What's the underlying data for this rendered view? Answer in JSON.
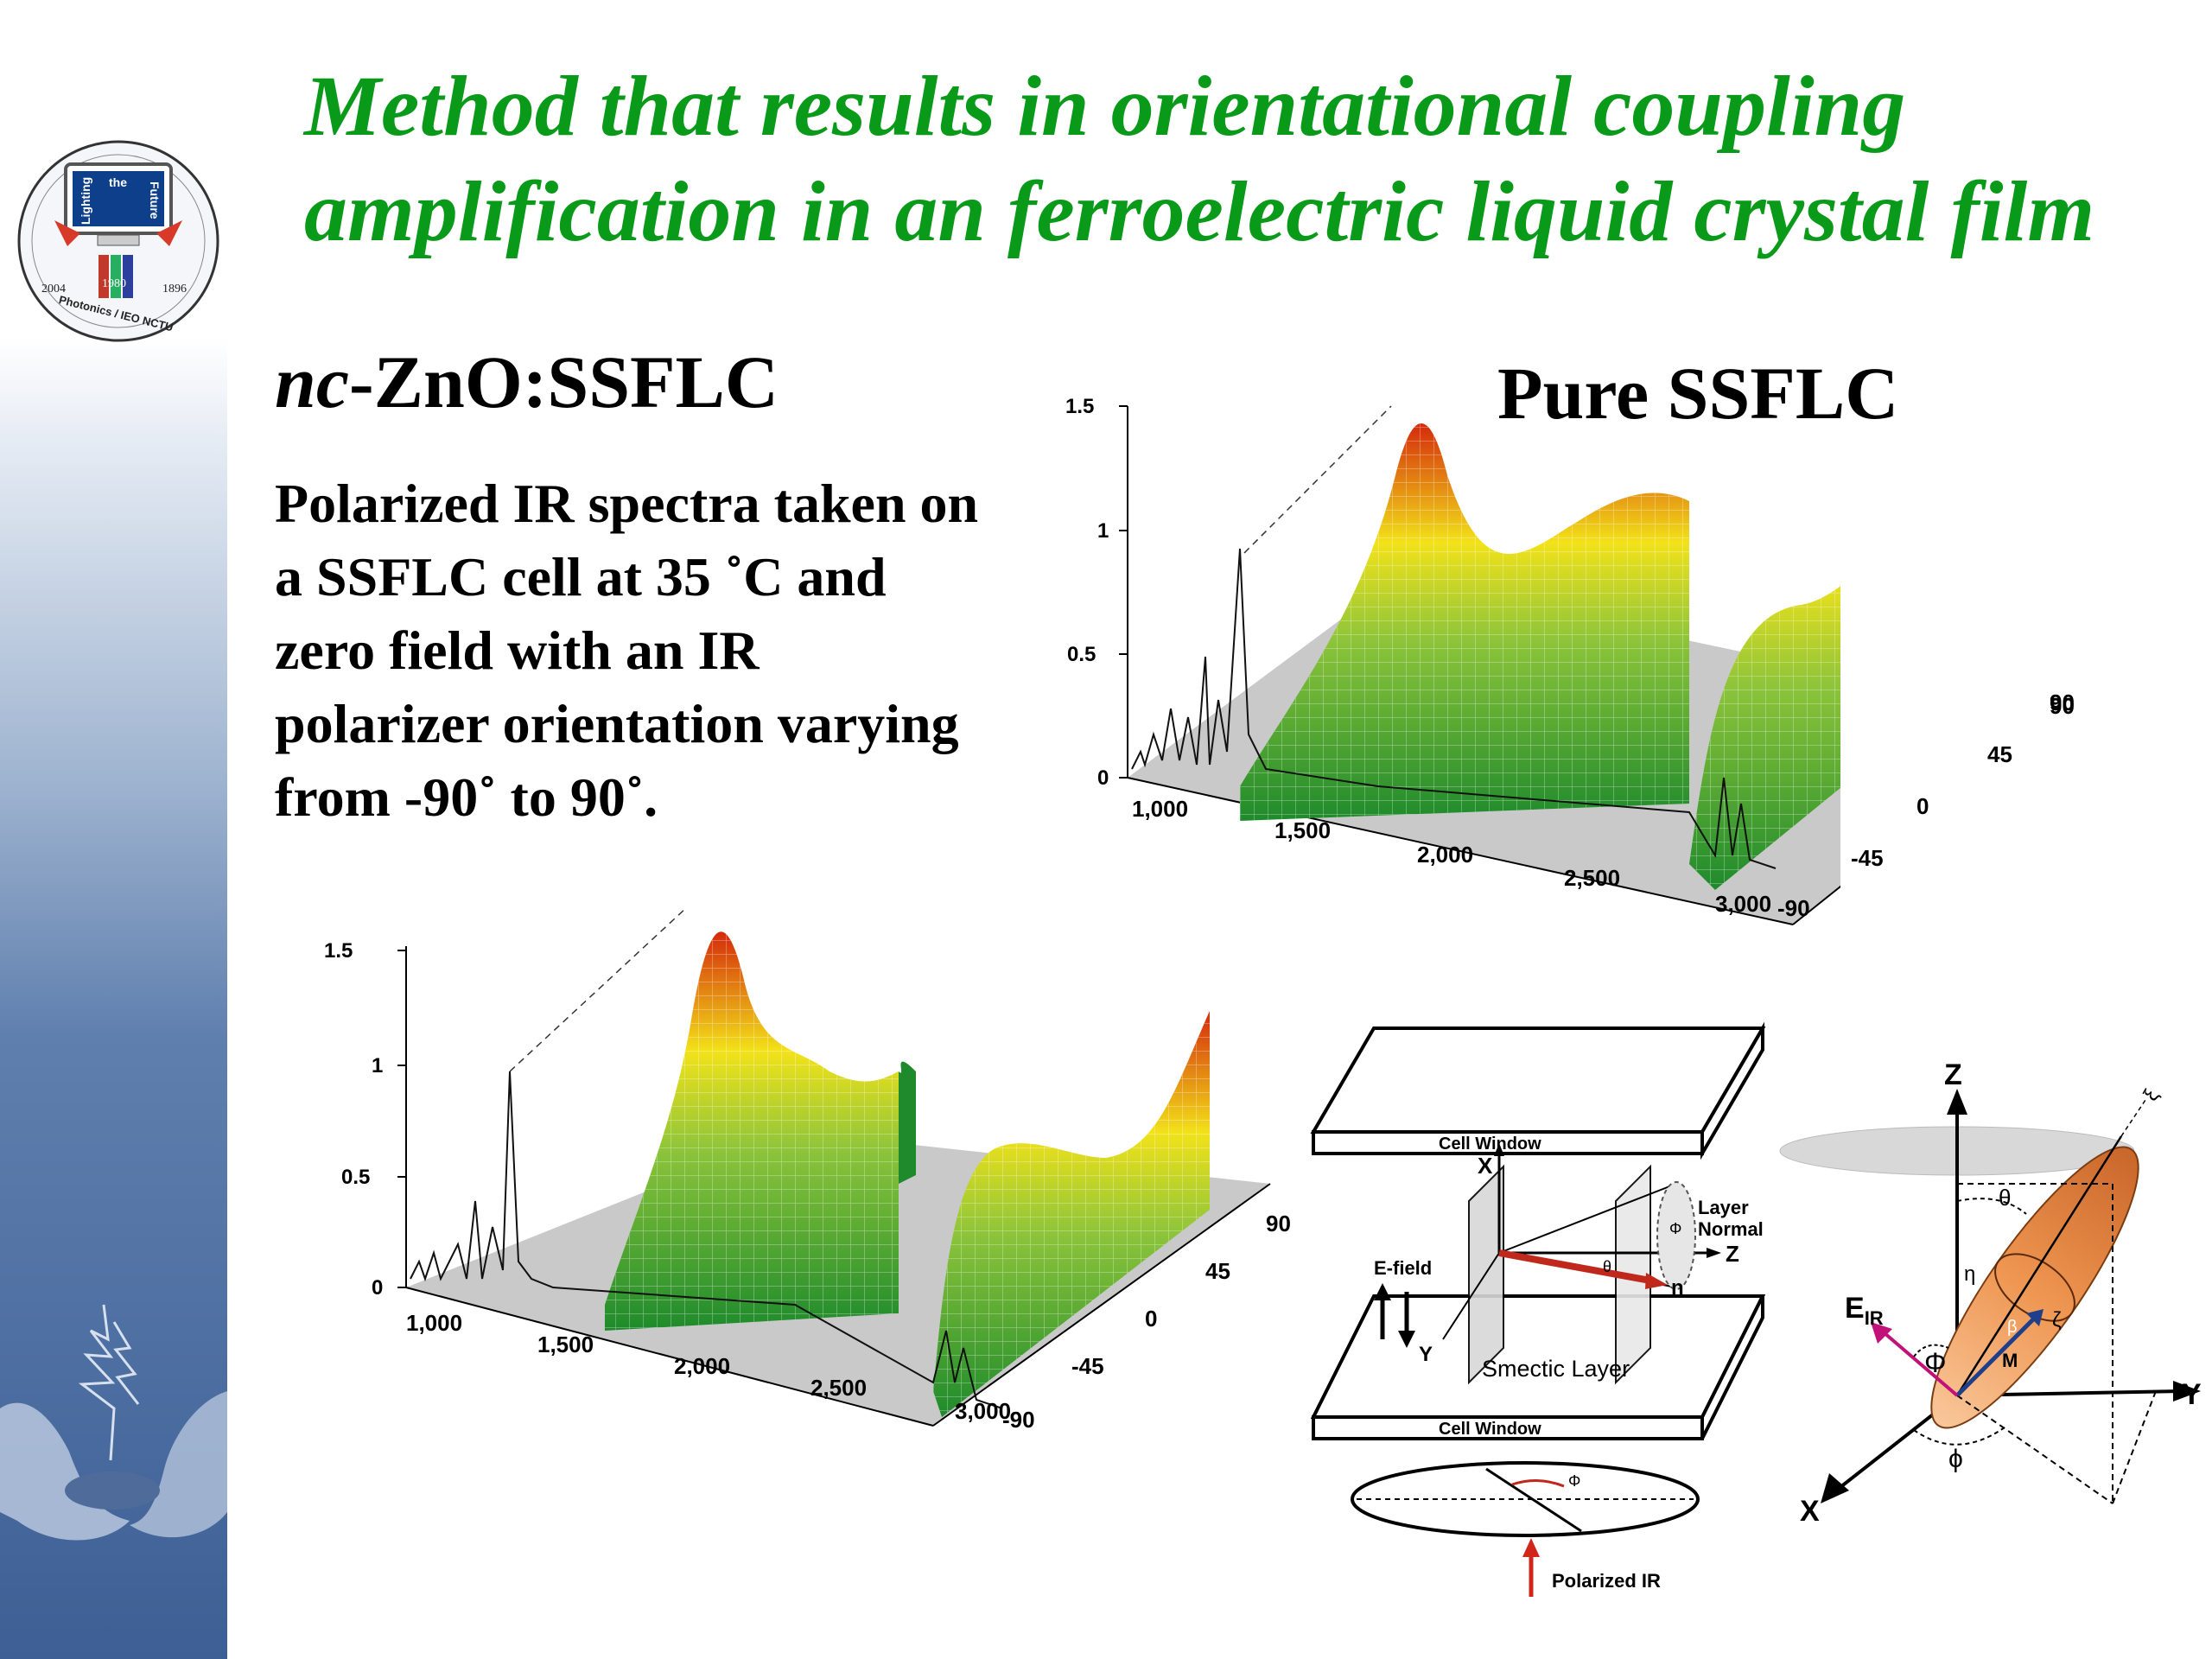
{
  "slide": {
    "title_line1": "Method that results in orientational coupling",
    "title_line2": "amplification in an ferroelectric liquid crystal film",
    "subtitle_left_prefix": "nc",
    "subtitle_left_rest": "-ZnO:SSFLC",
    "subtitle_right": "Pure SSFLC",
    "description": "Polarized IR spectra taken on a SSFLC cell at 35 ˚C and zero field with an IR polarizer orientation varying from -90˚ to 90˚."
  },
  "logo": {
    "text_lighting": "Lighting",
    "text_the": "the",
    "text_future": "Future",
    "year_left": "2004",
    "year_mid": "1980",
    "year_right": "1896",
    "org": "Photonics / IEO NCTU"
  },
  "plots": [
    {
      "name": "plot-pure-ssflc",
      "z_ticks": [
        "0",
        "0.5",
        "1",
        "1.5"
      ],
      "x_ticks": [
        "1,000",
        "1,500",
        "2,000",
        "2,500",
        "3,000"
      ],
      "y_ticks": [
        "-90",
        "-45",
        "0",
        "45",
        "90"
      ]
    },
    {
      "name": "plot-nc-zno-ssflc",
      "z_ticks": [
        "0",
        "0.5",
        "1",
        "1.5"
      ],
      "x_ticks": [
        "1,000",
        "1,500",
        "2,000",
        "2,500",
        "3,000"
      ],
      "y_ticks": [
        "-90",
        "-45",
        "0",
        "45",
        "90"
      ]
    }
  ],
  "cell_diagram": {
    "cell_window_top": "Cell Window",
    "cell_window_bottom": "Cell Window",
    "x_label": "X",
    "y_label": "Y",
    "z_label": "Z",
    "layer_normal": "Layer\nNormal",
    "e_field": "E-field",
    "smectic_layer": "Smectic Layer",
    "n_label": "n",
    "phi_small": "Φ",
    "theta_small": "θ",
    "polarized_ir": "Polarized IR"
  },
  "ellipsoid_diagram": {
    "z_label": "Z",
    "y_label": "Y",
    "x_label": "X",
    "theta": "θ",
    "eta": "η",
    "xi": "ξ",
    "zeta": "ζ",
    "beta": "β",
    "m_label": "M",
    "big_phi": "Φ",
    "small_phi": "ϕ",
    "e_ir": "E",
    "e_ir_sub": "IR"
  },
  "colors": {
    "title_green": "#0a9a1a",
    "sidebar_blue": "#3d5f95",
    "plot_floor": "#c8c8c8",
    "peak_red": "#d42a0c",
    "peak_yellow": "#f2e21a",
    "peak_green": "#1e8a2c"
  }
}
